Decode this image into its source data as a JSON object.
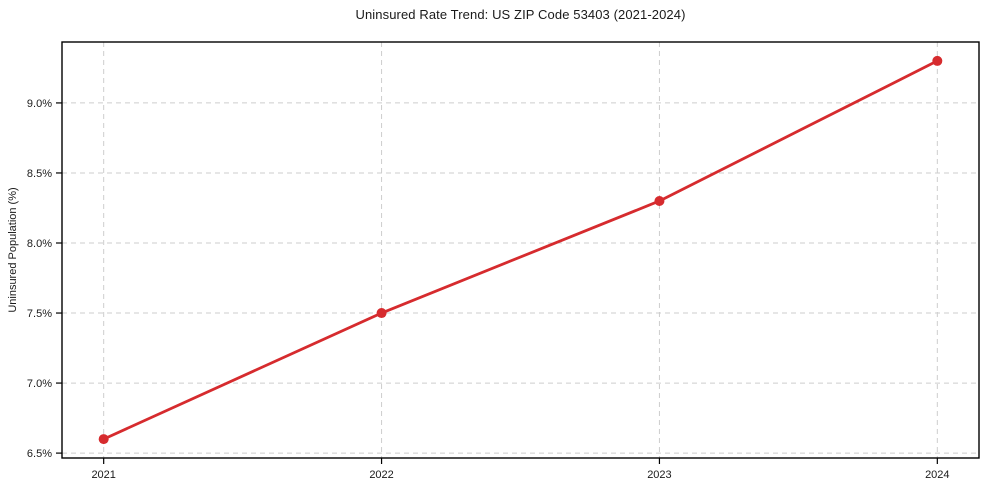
{
  "chart_data": {
    "type": "line",
    "title": "Uninsured Rate Trend: US ZIP Code 53403 (2021-2024)",
    "xlabel": "",
    "ylabel": "Uninsured Population (%)",
    "x": [
      2021,
      2022,
      2023,
      2024
    ],
    "xticks": [
      "2021",
      "2022",
      "2023",
      "2024"
    ],
    "series": [
      {
        "name": "Uninsured rate",
        "values": [
          6.6,
          7.5,
          8.3,
          9.3
        ]
      }
    ],
    "ytick_values": [
      6.5,
      7.0,
      7.5,
      8.0,
      8.5,
      9.0
    ],
    "yticks": [
      "6.5%",
      "7.0%",
      "7.5%",
      "8.0%",
      "8.5%",
      "9.0%"
    ],
    "xlim": [
      2020.85,
      2024.15
    ],
    "ylim": [
      6.465,
      9.435
    ],
    "grid": true,
    "grid_style": "dashed",
    "legend": "none",
    "line_color": "#d62b2e",
    "grid_color": "#cdcdcd",
    "axis_color": "#000000",
    "text_color": "#1a1a1a"
  }
}
